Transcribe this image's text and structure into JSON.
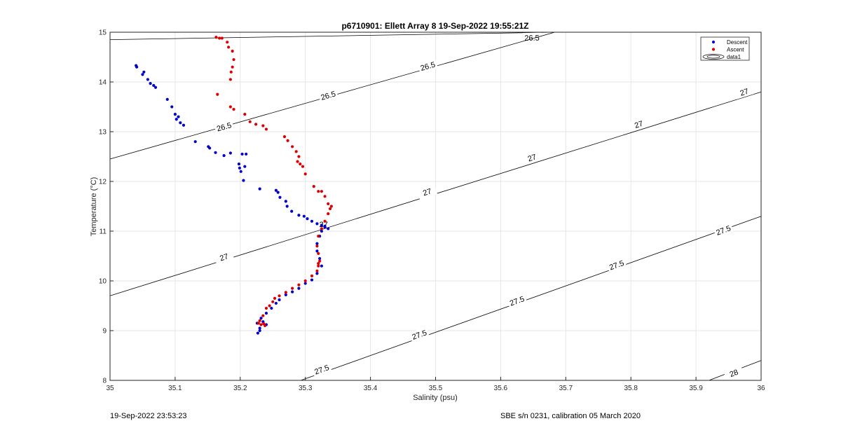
{
  "chart_data": {
    "type": "scatter",
    "title": "p6710901: Ellett Array 8 19-Sep-2022 19:55:21Z",
    "xlabel": "Salinity (psu)",
    "ylabel": "Temperature (°C)",
    "xlim": [
      35,
      36
    ],
    "ylim": [
      8,
      15
    ],
    "xticks": [
      "35",
      "35.1",
      "35.2",
      "35.3",
      "35.4",
      "35.5",
      "35.6",
      "35.7",
      "35.8",
      "35.9",
      "36"
    ],
    "yticks": [
      "8",
      "9",
      "10",
      "11",
      "12",
      "13",
      "14",
      "15"
    ],
    "grid": true,
    "legend_position": "top-right",
    "legend": [
      {
        "label": "Descent",
        "color": "#0000cc",
        "marker": "dot"
      },
      {
        "label": "Ascent",
        "color": "#dd0000",
        "marker": "dot"
      },
      {
        "label": "data1",
        "color": "#000000",
        "marker": "contour"
      }
    ],
    "series": [
      {
        "name": "Descent",
        "color": "#0000cc",
        "x": [
          35.04,
          35.041,
          35.05,
          35.052,
          35.058,
          35.062,
          35.067,
          35.07,
          35.088,
          35.095,
          35.1,
          35.102,
          35.105,
          35.108,
          35.113,
          35.131,
          35.151,
          35.153,
          35.162,
          35.175,
          35.185,
          35.198,
          35.203,
          35.209,
          35.199,
          35.201,
          35.207,
          35.205,
          35.23,
          35.255,
          35.258,
          35.261,
          35.27,
          35.272,
          35.279,
          35.29,
          35.298,
          35.303,
          35.31,
          35.318,
          35.325,
          35.33,
          35.335,
          35.33,
          35.325,
          35.322,
          35.318,
          35.318,
          35.322,
          35.325,
          35.318,
          35.31,
          35.3,
          35.29,
          35.28,
          35.27,
          35.26,
          35.255,
          35.248,
          35.24,
          35.232,
          35.226,
          35.23,
          35.235,
          35.24,
          35.23,
          35.227
        ],
        "y": [
          14.33,
          14.3,
          14.15,
          14.2,
          14.05,
          13.97,
          13.93,
          13.89,
          13.65,
          13.5,
          13.35,
          13.25,
          13.3,
          13.18,
          13.13,
          12.8,
          12.7,
          12.67,
          12.58,
          12.52,
          12.57,
          12.35,
          12.55,
          12.55,
          12.27,
          12.2,
          12.3,
          12.02,
          11.85,
          11.82,
          11.78,
          11.68,
          11.6,
          11.5,
          11.4,
          11.32,
          11.3,
          11.25,
          11.2,
          11.15,
          11.12,
          11.1,
          11.05,
          11.08,
          11.0,
          10.9,
          10.75,
          10.6,
          10.45,
          10.3,
          10.15,
          10.02,
          9.95,
          9.85,
          9.78,
          9.72,
          9.62,
          9.55,
          9.45,
          9.35,
          9.25,
          9.15,
          9.05,
          9.18,
          9.12,
          9.0,
          8.95
        ]
      },
      {
        "name": "Ascent",
        "color": "#dd0000",
        "x": [
          35.163,
          35.168,
          35.172,
          35.18,
          35.182,
          35.188,
          35.19,
          35.188,
          35.186,
          35.185,
          35.165,
          35.185,
          35.19,
          35.207,
          35.215,
          35.224,
          35.235,
          35.24,
          35.268,
          35.273,
          35.28,
          35.286,
          35.29,
          35.288,
          35.292,
          35.296,
          35.3,
          35.313,
          35.32,
          35.325,
          35.33,
          35.335,
          35.338,
          35.34,
          35.335,
          35.33,
          35.325,
          35.32,
          35.318,
          35.32,
          35.322,
          35.32,
          35.318,
          35.32,
          35.31,
          35.3,
          35.29,
          35.28,
          35.27,
          35.26,
          35.253,
          35.25,
          35.245,
          35.24,
          35.235,
          35.23,
          35.228,
          35.232,
          35.238,
          35.236
        ],
        "y": [
          14.9,
          14.88,
          14.88,
          14.8,
          14.7,
          14.62,
          14.45,
          14.3,
          14.2,
          14.05,
          13.75,
          13.5,
          13.45,
          13.35,
          13.2,
          13.15,
          13.12,
          13.05,
          12.9,
          12.82,
          12.7,
          12.6,
          12.5,
          12.4,
          12.35,
          12.3,
          12.15,
          11.9,
          11.8,
          11.8,
          11.7,
          11.55,
          11.45,
          11.5,
          11.35,
          11.2,
          11.05,
          10.9,
          10.7,
          10.55,
          10.4,
          10.3,
          10.2,
          10.35,
          10.1,
          10.0,
          9.92,
          9.85,
          9.77,
          9.7,
          9.65,
          9.58,
          9.5,
          9.45,
          9.3,
          9.2,
          9.15,
          9.12,
          9.1,
          9.14
        ]
      }
    ],
    "contour_lines": [
      {
        "level": "26.5",
        "x": [
          35.0,
          35.683
        ],
        "y": [
          14.85,
          15.0
        ],
        "labels": [
          {
            "x": 35.648,
            "y": 14.89
          }
        ]
      },
      {
        "level": "26.5",
        "x": [
          35.0,
          35.683
        ],
        "y": [
          12.45,
          15.0
        ],
        "labels": [
          {
            "x": 35.175,
            "y": 13.1
          },
          {
            "x": 35.335,
            "y": 13.73
          },
          {
            "x": 35.488,
            "y": 14.32
          }
        ]
      },
      {
        "level": "27",
        "x": [
          35.0,
          36.0
        ],
        "y": [
          9.7,
          13.8
        ],
        "labels": [
          {
            "x": 35.175,
            "y": 10.48
          },
          {
            "x": 35.487,
            "y": 11.79
          },
          {
            "x": 35.648,
            "y": 12.48
          },
          {
            "x": 35.812,
            "y": 13.15
          },
          {
            "x": 35.974,
            "y": 13.8
          }
        ]
      },
      {
        "level": "27.5",
        "x": [
          35.293,
          36.0
        ],
        "y": [
          8.0,
          11.3
        ],
        "labels": [
          {
            "x": 35.325,
            "y": 8.22
          },
          {
            "x": 35.475,
            "y": 8.92
          },
          {
            "x": 35.625,
            "y": 9.6
          },
          {
            "x": 35.778,
            "y": 10.32
          },
          {
            "x": 35.942,
            "y": 11.02
          }
        ]
      },
      {
        "level": "28",
        "x": [
          35.92,
          36.0
        ],
        "y": [
          8.0,
          8.4
        ],
        "labels": [
          {
            "x": 35.958,
            "y": 8.15
          }
        ]
      }
    ],
    "center_label": {
      "text": "27",
      "x": 35.328,
      "y": 11.14
    }
  },
  "footer": {
    "left": "19-Sep-2022 23:53:23",
    "right": "SBE s/n 0231, calibration 05 March 2020"
  }
}
